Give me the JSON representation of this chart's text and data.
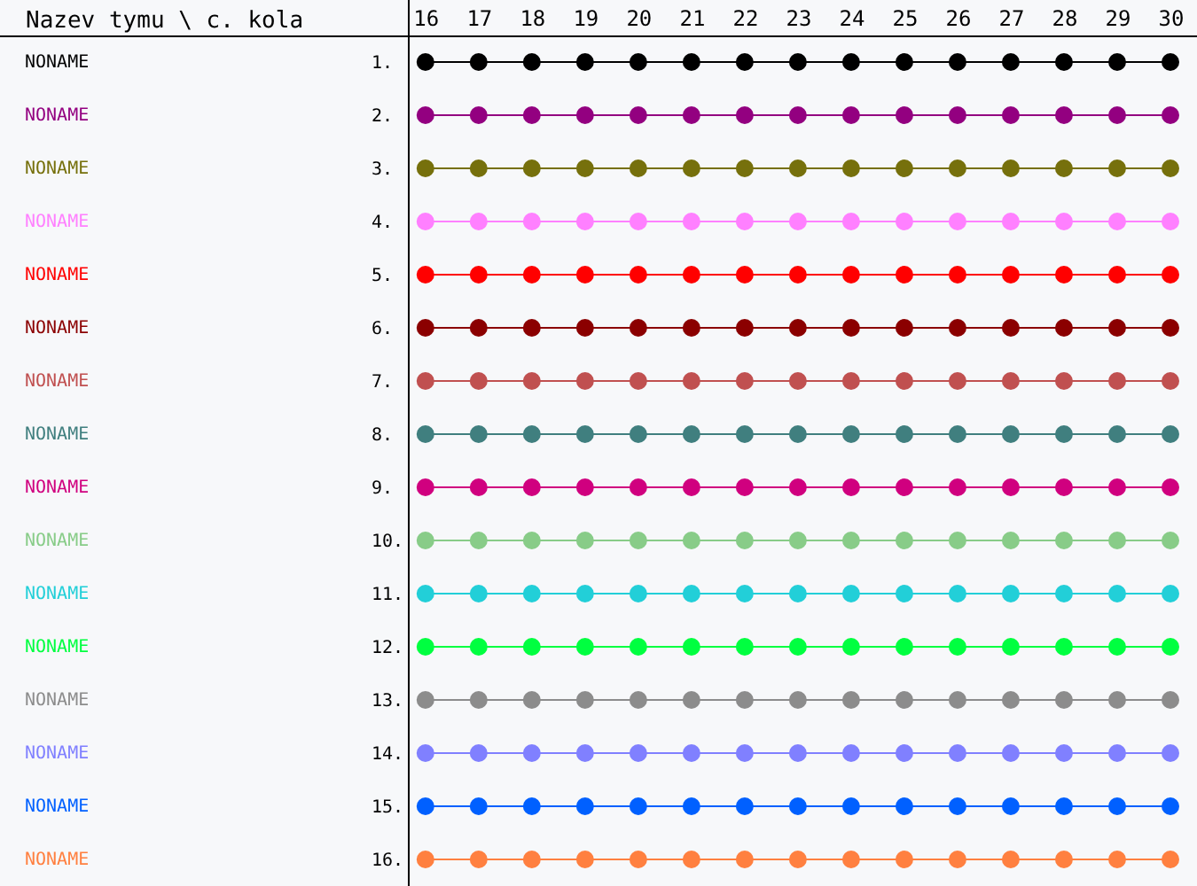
{
  "chart_data": {
    "type": "line",
    "xlabel": "Nazev tymu \\ c. kola",
    "marker": "circle",
    "grid": false,
    "x": [
      16,
      17,
      18,
      19,
      20,
      21,
      22,
      23,
      24,
      25,
      26,
      27,
      28,
      29,
      30
    ],
    "xlim": [
      15.67,
      30.5
    ],
    "xticks": [
      16,
      17,
      18,
      19,
      20,
      21,
      22,
      23,
      24,
      25,
      26,
      27,
      28,
      29,
      30
    ],
    "ylim": [
      16.5,
      0.5
    ],
    "yticks": [
      {
        "value": 1,
        "label": "1."
      },
      {
        "value": 2,
        "label": "2."
      },
      {
        "value": 3,
        "label": "3."
      },
      {
        "value": 4,
        "label": "4."
      },
      {
        "value": 5,
        "label": "5."
      },
      {
        "value": 6,
        "label": "6."
      },
      {
        "value": 7,
        "label": "7."
      },
      {
        "value": 8,
        "label": "8."
      },
      {
        "value": 9,
        "label": "9."
      },
      {
        "value": 10,
        "label": "10."
      },
      {
        "value": 11,
        "label": "11."
      },
      {
        "value": 12,
        "label": "12."
      },
      {
        "value": 13,
        "label": "13."
      },
      {
        "value": 14,
        "label": "14."
      },
      {
        "value": 15,
        "label": "15."
      },
      {
        "value": 16,
        "label": "16."
      }
    ],
    "series": [
      {
        "name": "NONAME",
        "color": "#000000",
        "values": [
          1,
          1,
          1,
          1,
          1,
          1,
          1,
          1,
          1,
          1,
          1,
          1,
          1,
          1,
          1
        ]
      },
      {
        "name": "NONAME",
        "color": "#930080",
        "values": [
          2,
          2,
          2,
          2,
          2,
          2,
          2,
          2,
          2,
          2,
          2,
          2,
          2,
          2,
          2
        ]
      },
      {
        "name": "NONAME",
        "color": "#76700c",
        "values": [
          3,
          3,
          3,
          3,
          3,
          3,
          3,
          3,
          3,
          3,
          3,
          3,
          3,
          3,
          3
        ]
      },
      {
        "name": "NONAME",
        "color": "#ff80ff",
        "values": [
          4,
          4,
          4,
          4,
          4,
          4,
          4,
          4,
          4,
          4,
          4,
          4,
          4,
          4,
          4
        ]
      },
      {
        "name": "NONAME",
        "color": "#ff0000",
        "values": [
          5,
          5,
          5,
          5,
          5,
          5,
          5,
          5,
          5,
          5,
          5,
          5,
          5,
          5,
          5
        ]
      },
      {
        "name": "NONAME",
        "color": "#8b0000",
        "values": [
          6,
          6,
          6,
          6,
          6,
          6,
          6,
          6,
          6,
          6,
          6,
          6,
          6,
          6,
          6
        ]
      },
      {
        "name": "NONAME",
        "color": "#c05050",
        "values": [
          7,
          7,
          7,
          7,
          7,
          7,
          7,
          7,
          7,
          7,
          7,
          7,
          7,
          7,
          7
        ]
      },
      {
        "name": "NONAME",
        "color": "#407f7f",
        "values": [
          8,
          8,
          8,
          8,
          8,
          8,
          8,
          8,
          8,
          8,
          8,
          8,
          8,
          8,
          8
        ]
      },
      {
        "name": "NONAME",
        "color": "#d0007f",
        "values": [
          9,
          9,
          9,
          9,
          9,
          9,
          9,
          9,
          9,
          9,
          9,
          9,
          9,
          9,
          9
        ]
      },
      {
        "name": "NONAME",
        "color": "#88cc88",
        "values": [
          10,
          10,
          10,
          10,
          10,
          10,
          10,
          10,
          10,
          10,
          10,
          10,
          10,
          10,
          10
        ]
      },
      {
        "name": "NONAME",
        "color": "#22cfd8",
        "values": [
          11,
          11,
          11,
          11,
          11,
          11,
          11,
          11,
          11,
          11,
          11,
          11,
          11,
          11,
          11
        ]
      },
      {
        "name": "NONAME",
        "color": "#00ff40",
        "values": [
          12,
          12,
          12,
          12,
          12,
          12,
          12,
          12,
          12,
          12,
          12,
          12,
          12,
          12,
          12
        ]
      },
      {
        "name": "NONAME",
        "color": "#8c8c8c",
        "values": [
          13,
          13,
          13,
          13,
          13,
          13,
          13,
          13,
          13,
          13,
          13,
          13,
          13,
          13,
          13
        ]
      },
      {
        "name": "NONAME",
        "color": "#8080ff",
        "values": [
          14,
          14,
          14,
          14,
          14,
          14,
          14,
          14,
          14,
          14,
          14,
          14,
          14,
          14,
          14
        ]
      },
      {
        "name": "NONAME",
        "color": "#0060ff",
        "values": [
          15,
          15,
          15,
          15,
          15,
          15,
          15,
          15,
          15,
          15,
          15,
          15,
          15,
          15,
          15
        ]
      },
      {
        "name": "NONAME",
        "color": "#ff8040",
        "values": [
          16,
          16,
          16,
          16,
          16,
          16,
          16,
          16,
          16,
          16,
          16,
          16,
          16,
          16,
          16
        ]
      }
    ]
  }
}
